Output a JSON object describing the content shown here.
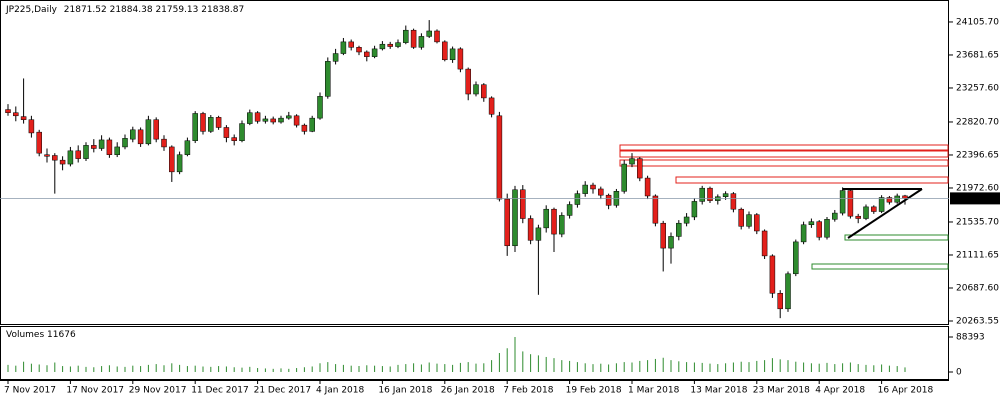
{
  "chart_data": {
    "type": "candlestick",
    "title": "JP225,Daily",
    "volume_title": "Volumes",
    "bull_color": "#2e8b2e",
    "bear_color": "#e3201b",
    "grid": false,
    "categories": [
      "7 Nov 2017",
      null,
      null,
      null,
      null,
      null,
      null,
      null,
      "17 Nov 2017",
      null,
      null,
      null,
      null,
      null,
      null,
      null,
      "29 Nov 2017",
      null,
      null,
      null,
      null,
      null,
      null,
      null,
      "11 Dec 2017",
      null,
      null,
      null,
      null,
      null,
      null,
      null,
      "21 Dec 2017",
      null,
      null,
      null,
      null,
      null,
      null,
      null,
      "4 Jan 2018",
      null,
      null,
      null,
      null,
      null,
      null,
      null,
      "16 Jan 2018",
      null,
      null,
      null,
      null,
      null,
      null,
      null,
      "26 Jan 2018",
      null,
      null,
      null,
      null,
      null,
      null,
      null,
      "7 Feb 2018",
      null,
      null,
      null,
      null,
      null,
      null,
      null,
      "19 Feb 2018",
      null,
      null,
      null,
      null,
      null,
      null,
      null,
      "1 Mar 2018",
      null,
      null,
      null,
      null,
      null,
      null,
      null,
      "13 Mar 2018",
      null,
      null,
      null,
      null,
      null,
      null,
      null,
      "23 Mar 2018",
      null,
      null,
      null,
      null,
      null,
      null,
      null,
      "4 Apr 2018",
      null,
      null,
      null,
      null,
      null,
      null,
      null,
      "16 Apr 2018",
      null,
      null,
      null
    ],
    "candles": [
      [
        22980,
        23050,
        22900,
        22940
      ],
      [
        22940,
        23020,
        22830,
        22900
      ],
      [
        22890,
        23380,
        22800,
        22850
      ],
      [
        22850,
        22900,
        22620,
        22680
      ],
      [
        22690,
        22720,
        22380,
        22420
      ],
      [
        22400,
        22480,
        22300,
        22380
      ],
      [
        22390,
        22420,
        21900,
        22330
      ],
      [
        22330,
        22380,
        22200,
        22280
      ],
      [
        22280,
        22500,
        22250,
        22450
      ],
      [
        22450,
        22520,
        22300,
        22350
      ],
      [
        22350,
        22560,
        22320,
        22520
      ],
      [
        22520,
        22600,
        22430,
        22480
      ],
      [
        22480,
        22650,
        22450,
        22590
      ],
      [
        22590,
        22620,
        22360,
        22400
      ],
      [
        22400,
        22560,
        22370,
        22500
      ],
      [
        22500,
        22660,
        22470,
        22610
      ],
      [
        22600,
        22760,
        22560,
        22720
      ],
      [
        22720,
        22750,
        22500,
        22540
      ],
      [
        22540,
        22900,
        22520,
        22850
      ],
      [
        22850,
        22880,
        22560,
        22600
      ],
      [
        22600,
        22650,
        22450,
        22500
      ],
      [
        22500,
        22520,
        22050,
        22180
      ],
      [
        22180,
        22440,
        22150,
        22400
      ],
      [
        22400,
        22620,
        22380,
        22580
      ],
      [
        22580,
        22960,
        22550,
        22930
      ],
      [
        22930,
        22950,
        22660,
        22700
      ],
      [
        22700,
        22910,
        22680,
        22880
      ],
      [
        22880,
        22900,
        22720,
        22750
      ],
      [
        22750,
        22780,
        22560,
        22620
      ],
      [
        22620,
        22660,
        22520,
        22580
      ],
      [
        22580,
        22840,
        22560,
        22800
      ],
      [
        22800,
        22980,
        22780,
        22940
      ],
      [
        22940,
        22960,
        22800,
        22830
      ],
      [
        22830,
        22900,
        22800,
        22860
      ],
      [
        22860,
        22890,
        22790,
        22820
      ],
      [
        22820,
        22900,
        22800,
        22870
      ],
      [
        22870,
        22950,
        22850,
        22900
      ],
      [
        22900,
        22920,
        22750,
        22780
      ],
      [
        22780,
        22800,
        22660,
        22700
      ],
      [
        22700,
        22900,
        22690,
        22870
      ],
      [
        22870,
        23200,
        22850,
        23150
      ],
      [
        23150,
        23650,
        23120,
        23600
      ],
      [
        23600,
        23760,
        23560,
        23700
      ],
      [
        23700,
        23900,
        23680,
        23850
      ],
      [
        23850,
        23880,
        23740,
        23780
      ],
      [
        23780,
        23800,
        23680,
        23720
      ],
      [
        23720,
        23740,
        23600,
        23660
      ],
      [
        23660,
        23800,
        23640,
        23760
      ],
      [
        23760,
        23860,
        23740,
        23820
      ],
      [
        23820,
        23850,
        23760,
        23790
      ],
      [
        23790,
        23880,
        23770,
        23840
      ],
      [
        23840,
        24060,
        23820,
        24000
      ],
      [
        24000,
        24020,
        23760,
        23780
      ],
      [
        23780,
        23960,
        23750,
        23920
      ],
      [
        23920,
        24130,
        23900,
        23990
      ],
      [
        23990,
        24010,
        23830,
        23850
      ],
      [
        23850,
        23870,
        23600,
        23620
      ],
      [
        23620,
        23790,
        23580,
        23760
      ],
      [
        23760,
        23780,
        23460,
        23500
      ],
      [
        23500,
        23520,
        23100,
        23180
      ],
      [
        23180,
        23340,
        23150,
        23300
      ],
      [
        23300,
        23320,
        23080,
        23130
      ],
      [
        23130,
        23150,
        22880,
        22920
      ],
      [
        22900,
        22950,
        21800,
        21830
      ],
      [
        21830,
        21900,
        21100,
        21230
      ],
      [
        21230,
        22000,
        21150,
        21950
      ],
      [
        21950,
        22010,
        21520,
        21580
      ],
      [
        21580,
        21620,
        21250,
        21300
      ],
      [
        21300,
        21500,
        20600,
        21460
      ],
      [
        21460,
        21750,
        21400,
        21700
      ],
      [
        21700,
        21720,
        21150,
        21380
      ],
      [
        21380,
        21660,
        21340,
        21620
      ],
      [
        21620,
        21800,
        21580,
        21760
      ],
      [
        21760,
        21940,
        21720,
        21900
      ],
      [
        21900,
        22060,
        21860,
        22010
      ],
      [
        22010,
        22040,
        21900,
        21960
      ],
      [
        21960,
        21990,
        21830,
        21880
      ],
      [
        21880,
        21900,
        21700,
        21750
      ],
      [
        21750,
        21960,
        21720,
        21930
      ],
      [
        21930,
        22330,
        21900,
        22280
      ],
      [
        22280,
        22420,
        22240,
        22350
      ],
      [
        22350,
        22370,
        22060,
        22100
      ],
      [
        22100,
        22130,
        21830,
        21870
      ],
      [
        21870,
        21890,
        21480,
        21520
      ],
      [
        21520,
        21550,
        20900,
        21200
      ],
      [
        21200,
        21400,
        21000,
        21350
      ],
      [
        21350,
        21560,
        21300,
        21520
      ],
      [
        21520,
        21650,
        21480,
        21600
      ],
      [
        21600,
        21840,
        21560,
        21800
      ],
      [
        21800,
        22000,
        21760,
        21970
      ],
      [
        21970,
        21990,
        21780,
        21810
      ],
      [
        21810,
        21890,
        21760,
        21860
      ],
      [
        21860,
        21930,
        21820,
        21900
      ],
      [
        21900,
        21920,
        21660,
        21700
      ],
      [
        21700,
        21720,
        21440,
        21480
      ],
      [
        21480,
        21670,
        21450,
        21630
      ],
      [
        21630,
        21650,
        21380,
        21420
      ],
      [
        21420,
        21440,
        21060,
        21100
      ],
      [
        21100,
        21120,
        20560,
        20620
      ],
      [
        20620,
        20660,
        20300,
        20420
      ],
      [
        20420,
        20900,
        20380,
        20870
      ],
      [
        20870,
        21310,
        20840,
        21280
      ],
      [
        21280,
        21540,
        21250,
        21500
      ],
      [
        21500,
        21580,
        21460,
        21540
      ],
      [
        21540,
        21560,
        21300,
        21340
      ],
      [
        21340,
        21600,
        21310,
        21570
      ],
      [
        21570,
        21690,
        21540,
        21650
      ],
      [
        21650,
        21980,
        21620,
        21940
      ],
      [
        21940,
        21960,
        21580,
        21610
      ],
      [
        21610,
        21640,
        21520,
        21580
      ],
      [
        21580,
        21760,
        21560,
        21730
      ],
      [
        21730,
        21750,
        21640,
        21670
      ],
      [
        21670,
        21880,
        21650,
        21850
      ],
      [
        21850,
        21870,
        21760,
        21790
      ],
      [
        21790,
        21900,
        21770,
        21870
      ],
      [
        21871.52,
        21884.38,
        21759.13,
        21838.87
      ]
    ],
    "volume": [
      18000,
      16000,
      26000,
      21000,
      19000,
      17000,
      24000,
      15000,
      14000,
      16000,
      13000,
      12000,
      15000,
      17000,
      14000,
      13000,
      16000,
      15000,
      18000,
      20000,
      17000,
      22000,
      18000,
      15000,
      16000,
      14000,
      13000,
      15000,
      14000,
      12000,
      11000,
      13000,
      10000,
      9000,
      8000,
      9000,
      8000,
      10000,
      12000,
      14000,
      22000,
      25000,
      20000,
      18000,
      16000,
      15000,
      17000,
      16000,
      15000,
      14000,
      18000,
      20000,
      22000,
      19000,
      24000,
      21000,
      20000,
      18000,
      23000,
      25000,
      21000,
      22000,
      30000,
      48000,
      60000,
      88393,
      52000,
      45000,
      42000,
      38000,
      35000,
      30000,
      28000,
      25000,
      22000,
      20000,
      21000,
      19000,
      22000,
      25000,
      24000,
      28000,
      30000,
      33000,
      36000,
      30000,
      27000,
      25000,
      24000,
      23000,
      21000,
      20000,
      22000,
      24000,
      26000,
      25000,
      28000,
      30000,
      35000,
      32000,
      30000,
      26000,
      24000,
      22000,
      21000,
      23000,
      20000,
      22000,
      24000,
      20000,
      18000,
      17000,
      19000,
      16000,
      15000,
      11676
    ],
    "ylim": [
      20212,
      24388
    ],
    "yticks": [
      {
        "value": 24105.7,
        "label": "24105.70"
      },
      23681.65,
      {
        "value": 23257.6,
        "label": "23257.60"
      },
      {
        "value": 22820.7,
        "label": "22820.70"
      },
      22396.65,
      {
        "value": 21972.6,
        "label": "21972.60"
      },
      {
        "value": 21535.7,
        "label": "21535.70"
      },
      21111.65,
      {
        "value": 20687.6,
        "label": "20687.60"
      },
      20263.55
    ],
    "volume_ylim": [
      0,
      88393
    ],
    "volume_yticks": [
      88393,
      0
    ]
  }
}
